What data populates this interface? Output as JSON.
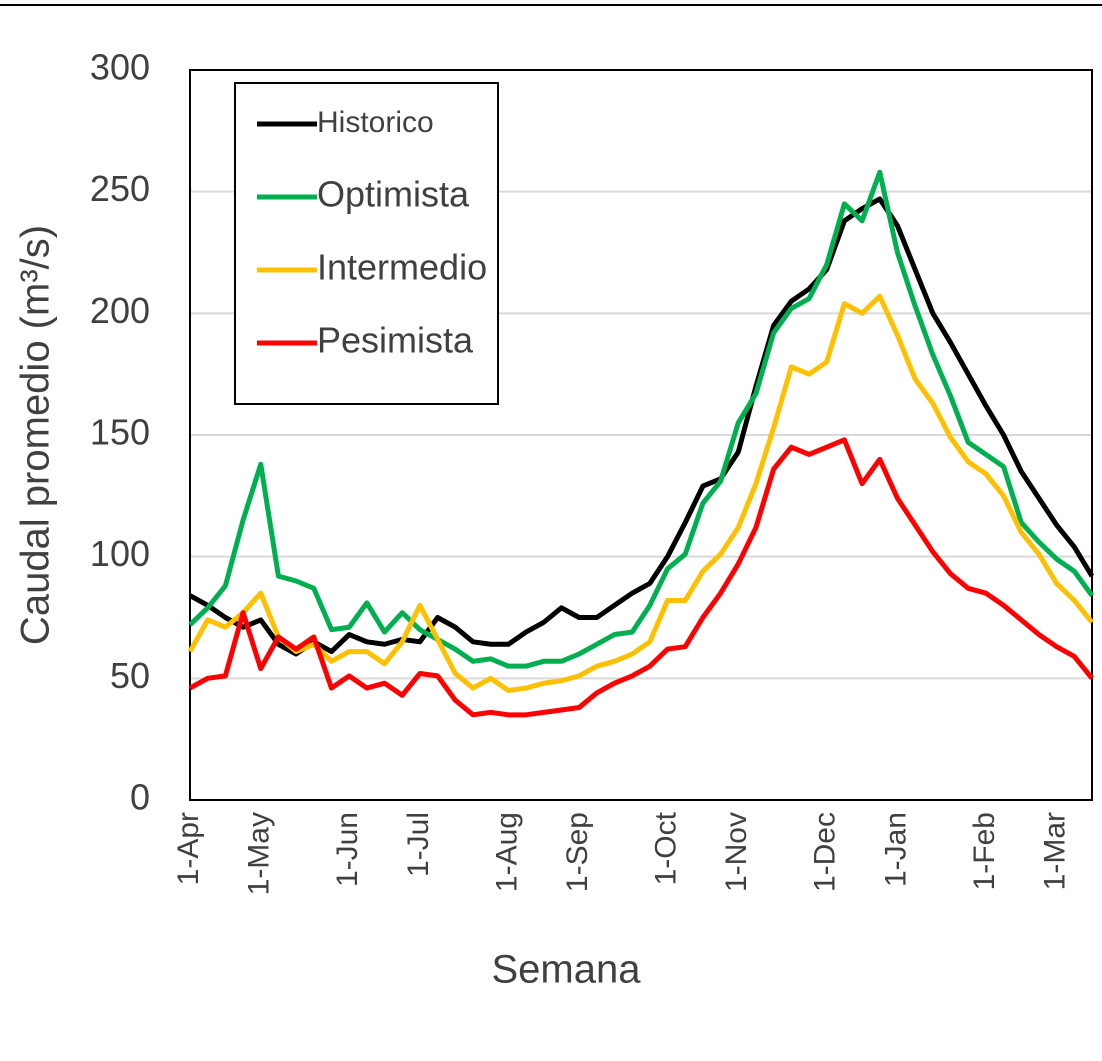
{
  "chart_data": {
    "type": "line",
    "x_label": "Semana",
    "y_label": "Caudal promedio (m³/s)",
    "categories": [
      "1-Apr",
      null,
      null,
      null,
      "1-May",
      null,
      null,
      null,
      null,
      "1-Jun",
      null,
      null,
      null,
      "1-Jul",
      null,
      null,
      null,
      null,
      "1-Aug",
      null,
      null,
      null,
      "1-Sep",
      null,
      null,
      null,
      null,
      "1-Oct",
      null,
      null,
      null,
      "1-Nov",
      null,
      null,
      null,
      null,
      "1-Dec",
      null,
      null,
      null,
      "1-Jan",
      null,
      null,
      null,
      null,
      "1-Feb",
      null,
      null,
      null,
      "1-Mar",
      null,
      null
    ],
    "series": [
      {
        "name": "Historico",
        "color": "#000000",
        "values": [
          84,
          80,
          75,
          71,
          74,
          64,
          60,
          65,
          61,
          68,
          65,
          64,
          66,
          65,
          75,
          71,
          65,
          64,
          64,
          69,
          73,
          79,
          75,
          75,
          80,
          85,
          89,
          100,
          114,
          129,
          132,
          143,
          170,
          195,
          205,
          210,
          218,
          238,
          243,
          247,
          236,
          218,
          200,
          188,
          175,
          162,
          150,
          135,
          124,
          113,
          104,
          92
        ]
      },
      {
        "name": "Optimista",
        "color": "#00b050",
        "values": [
          72,
          79,
          88,
          115,
          138,
          92,
          90,
          87,
          70,
          71,
          81,
          69,
          77,
          70,
          66,
          62,
          57,
          58,
          55,
          55,
          57,
          57,
          60,
          64,
          68,
          69,
          80,
          95,
          101,
          122,
          131,
          155,
          167,
          192,
          202,
          206,
          220,
          245,
          238,
          258,
          225,
          203,
          183,
          166,
          147,
          142,
          137,
          114,
          106,
          99,
          94,
          84
        ]
      },
      {
        "name": "Intermedio",
        "color": "#ffc000",
        "values": [
          61,
          74,
          71,
          77,
          85,
          67,
          61,
          64,
          57,
          61,
          61,
          56,
          65,
          80,
          66,
          52,
          46,
          50,
          45,
          46,
          48,
          49,
          51,
          55,
          57,
          60,
          65,
          82,
          82,
          94,
          101,
          112,
          130,
          153,
          178,
          175,
          180,
          204,
          200,
          207,
          191,
          173,
          163,
          149,
          139,
          134,
          125,
          110,
          101,
          89,
          82,
          73
        ]
      },
      {
        "name": "Pesimista",
        "color": "#ff0000",
        "values": [
          46,
          50,
          51,
          77,
          54,
          67,
          62,
          67,
          46,
          51,
          46,
          48,
          43,
          52,
          51,
          41,
          35,
          36,
          35,
          35,
          36,
          37,
          38,
          44,
          48,
          51,
          55,
          62,
          63,
          75,
          85,
          97,
          112,
          136,
          145,
          142,
          145,
          148,
          130,
          140,
          124,
          113,
          102,
          93,
          87,
          85,
          80,
          74,
          68,
          63,
          59,
          50
        ]
      }
    ],
    "ylim": [
      0,
      300
    ],
    "yticks": [
      0,
      50,
      100,
      150,
      200,
      250,
      300
    ],
    "grid": true,
    "legend": "upper left"
  }
}
